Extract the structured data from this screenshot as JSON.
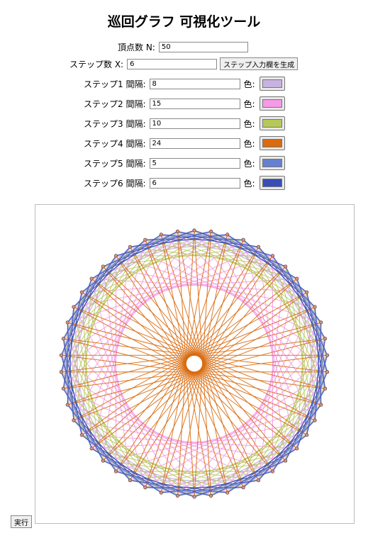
{
  "title": "巡回グラフ 可視化ツール",
  "vertex": {
    "label": "頂点数 N:",
    "value": "50"
  },
  "steps": {
    "label": "ステップ数 X:",
    "value": "6",
    "generate_label": "ステップ入力欄を生成"
  },
  "step_rows": [
    {
      "label": "ステップ1 間隔:",
      "value": "8",
      "color_label": "色:",
      "color": "#c8b3e0"
    },
    {
      "label": "ステップ2 間隔:",
      "value": "15",
      "color_label": "色:",
      "color": "#f59ae6"
    },
    {
      "label": "ステップ3 間隔:",
      "value": "10",
      "color_label": "色:",
      "color": "#b5c95a"
    },
    {
      "label": "ステップ4 間隔:",
      "value": "24",
      "color_label": "色:",
      "color": "#d96a0d"
    },
    {
      "label": "ステップ5 間隔:",
      "value": "5",
      "color_label": "色:",
      "color": "#6680d0"
    },
    {
      "label": "ステップ6 間隔:",
      "value": "6",
      "color_label": "色:",
      "color": "#3a4db5"
    }
  ],
  "run_label": "実行",
  "graph": {
    "n": 50,
    "intervals": [
      8,
      15,
      10,
      24,
      5,
      6
    ],
    "vertex_color": "#e58f7c"
  }
}
